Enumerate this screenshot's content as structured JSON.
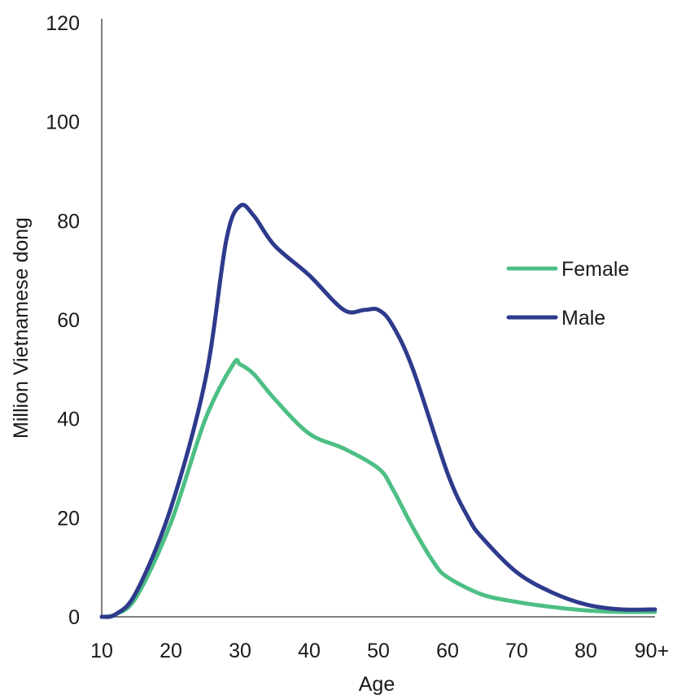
{
  "chart_data": {
    "type": "line",
    "title": "",
    "xlabel": "Age",
    "ylabel": "Million Vietnamese dong",
    "x_ticks": [
      "10",
      "20",
      "30",
      "40",
      "50",
      "60",
      "70",
      "80",
      "90+"
    ],
    "x_tick_values": [
      10,
      20,
      30,
      40,
      50,
      60,
      70,
      80,
      90
    ],
    "y_ticks": [
      "0",
      "20",
      "40",
      "60",
      "80",
      "100",
      "120"
    ],
    "y_tick_values": [
      0,
      20,
      40,
      60,
      80,
      100,
      120
    ],
    "xlim": [
      10,
      90
    ],
    "ylim": [
      0,
      120
    ],
    "grid": false,
    "legend_position": "right",
    "series": [
      {
        "name": "Female",
        "color": "#4dbf84",
        "x": [
          10,
          12,
          15,
          20,
          25,
          29,
          30,
          32,
          35,
          40,
          45,
          50,
          52,
          55,
          58,
          60,
          65,
          70,
          75,
          80,
          85,
          90
        ],
        "y": [
          0,
          0.5,
          4,
          19,
          40,
          51,
          51,
          49,
          44,
          37,
          34,
          30,
          26,
          18,
          11,
          8,
          4.5,
          3,
          2,
          1.3,
          1,
          1
        ]
      },
      {
        "name": "Male",
        "color": "#2e3a8c",
        "x": [
          10,
          12,
          15,
          20,
          25,
          28,
          30,
          32,
          35,
          40,
          45,
          48,
          50,
          52,
          55,
          60,
          63,
          65,
          70,
          75,
          80,
          85,
          90
        ],
        "y": [
          0,
          0.5,
          5,
          22,
          48,
          76,
          83,
          81,
          75,
          69,
          62,
          62,
          62,
          59,
          50,
          29,
          20,
          16,
          9,
          5,
          2.5,
          1.5,
          1.5
        ]
      }
    ]
  }
}
